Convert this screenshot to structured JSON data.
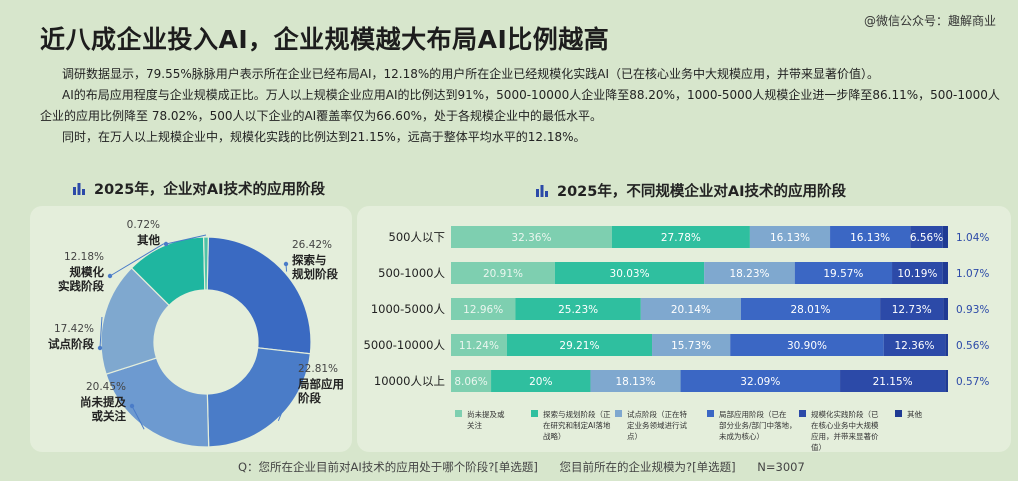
{
  "title": "近八成企业投入AI，企业规模越大布局AI比例越高",
  "watermark": "@微信公众号：趣解商业",
  "paragraphs": [
    "调研数据显示，79.55%脉脉用户表示所在企业已经布局AI，12.18%的用户所在企业已经规模化实践AI（已在核心业务中大规模应用，并带来显著价值）。",
    "AI的布局应用程度与企业规模成正比。万人以上规模企业应用AI的比例达到91%，5000-10000人企业降至88.20%，1000-5000人规模企业进一步降至86.11%，500-1000人企业的应用比例降至 78.02%，500人以下企业的AI覆盖率仅为66.60%，处于各规模企业中的最低水平。",
    "同时，在万人以上规模企业中，规模化实践的比例达到21.15%，远高于整体平均水平的12.18%。"
  ],
  "footnote": {
    "q1": "Q：您所在企业目前对AI技术的应用处于哪个阶段?[单选题]",
    "q2": "您目前所在的企业规模为?[单选题]",
    "n": "N=3007"
  },
  "colors": {
    "background": "#d7e6cc",
    "stage1": "#7ecfb0",
    "stage2": "#2fbf9f",
    "stage3": "#7fa8cf",
    "stage4": "#3b67c4",
    "stage5": "#2c4aa8",
    "stage6": "#1f3a93"
  },
  "chart_data": [
    {
      "type": "pie",
      "title": "2025年，企业对AI技术的应用阶段",
      "donut": true,
      "slices": [
        {
          "label": "探索与规划阶段",
          "value": 26.42,
          "display": "26.42%",
          "color": "#3a6ac2",
          "label_lines": [
            "探索与",
            "规划阶段"
          ]
        },
        {
          "label": "局部应用阶段",
          "value": 22.81,
          "display": "22.81%",
          "color": "#4a7cc8",
          "label_lines": [
            "局部应用",
            "阶段"
          ]
        },
        {
          "label": "尚未提及或关注",
          "value": 20.45,
          "display": "20.45%",
          "color": "#6d9ad0",
          "label_lines": [
            "尚未提及",
            "或关注"
          ]
        },
        {
          "label": "试点阶段",
          "value": 17.42,
          "display": "17.42%",
          "color": "#7fa8cf",
          "label_lines": [
            "试点阶段"
          ]
        },
        {
          "label": "规模化实践阶段",
          "value": 12.18,
          "display": "12.18%",
          "color": "#1fb6a0",
          "label_lines": [
            "规模化",
            "实践阶段"
          ]
        },
        {
          "label": "其他",
          "value": 0.72,
          "display": "0.72%",
          "color": "#4fc2a8",
          "label_lines": [
            "其他"
          ]
        }
      ]
    },
    {
      "type": "bar",
      "orientation": "horizontal",
      "stacked": true,
      "title": "2025年，不同规模企业对AI技术的应用阶段",
      "categories": [
        "500人以下",
        "500-1000人",
        "1000-5000人",
        "5000-10000人",
        "10000人以上"
      ],
      "series": [
        {
          "name": "尚未提及或关注",
          "legend_lines": [
            "尚未提及或",
            "关注"
          ],
          "values": [
            32.36,
            20.91,
            12.96,
            11.24,
            8.06
          ],
          "labels": [
            "32.36%",
            "20.91%",
            "12.96%",
            "11.24%",
            "8.06%"
          ],
          "color": "#7ecfb0"
        },
        {
          "name": "探索与规划阶段（正在研究和制定AI落地战略）",
          "legend_lines": [
            "探索与规划阶段（正",
            "在研究和制定AI落地",
            "战略）"
          ],
          "values": [
            27.78,
            30.03,
            25.23,
            29.21,
            20
          ],
          "labels": [
            "27.78%",
            "30.03%",
            "25.23%",
            "29.21%",
            "20%"
          ],
          "color": "#2fbf9f"
        },
        {
          "name": "试点阶段（正在特定业务领域进行试点）",
          "legend_lines": [
            "试点阶段（正在特",
            "定业务领域进行试",
            "点）"
          ],
          "values": [
            16.13,
            18.23,
            20.14,
            15.73,
            18.13
          ],
          "labels": [
            "16.13%",
            "18.23%",
            "20.14%",
            "15.73%",
            "18.13%"
          ],
          "color": "#7fa8cf"
        },
        {
          "name": "局部应用阶段（已在部分业务/部门中落地，未成为核心）",
          "legend_lines": [
            "局部应用阶段（已在",
            "部分业务/部门中落地，",
            "未成为核心）"
          ],
          "values": [
            16.13,
            19.57,
            28.01,
            30.9,
            32.09
          ],
          "labels": [
            "16.13%",
            "19.57%",
            "28.01%",
            "30.90%",
            "32.09%"
          ],
          "color": "#3b67c4"
        },
        {
          "name": "规模化实践阶段（已在核心业务中大规模应用，并带来显著价值）",
          "legend_lines": [
            "规模化实践阶段（已",
            "在核心业务中大规模",
            "应用，并带来显著价",
            "值）"
          ],
          "values": [
            6.56,
            10.19,
            12.73,
            12.36,
            21.15
          ],
          "labels": [
            "6.56%",
            "10.19%",
            "12.73%",
            "12.36%",
            "21.15%"
          ],
          "color": "#2c4aa8"
        },
        {
          "name": "其他",
          "legend_lines": [
            "其他"
          ],
          "values": [
            1.04,
            1.07,
            0.93,
            0.56,
            0.57
          ],
          "labels": [
            "1.04%",
            "1.07%",
            "0.93%",
            "0.56%",
            "0.57%"
          ],
          "color": "#1f3a93"
        }
      ],
      "xlim": [
        0,
        100
      ]
    }
  ]
}
